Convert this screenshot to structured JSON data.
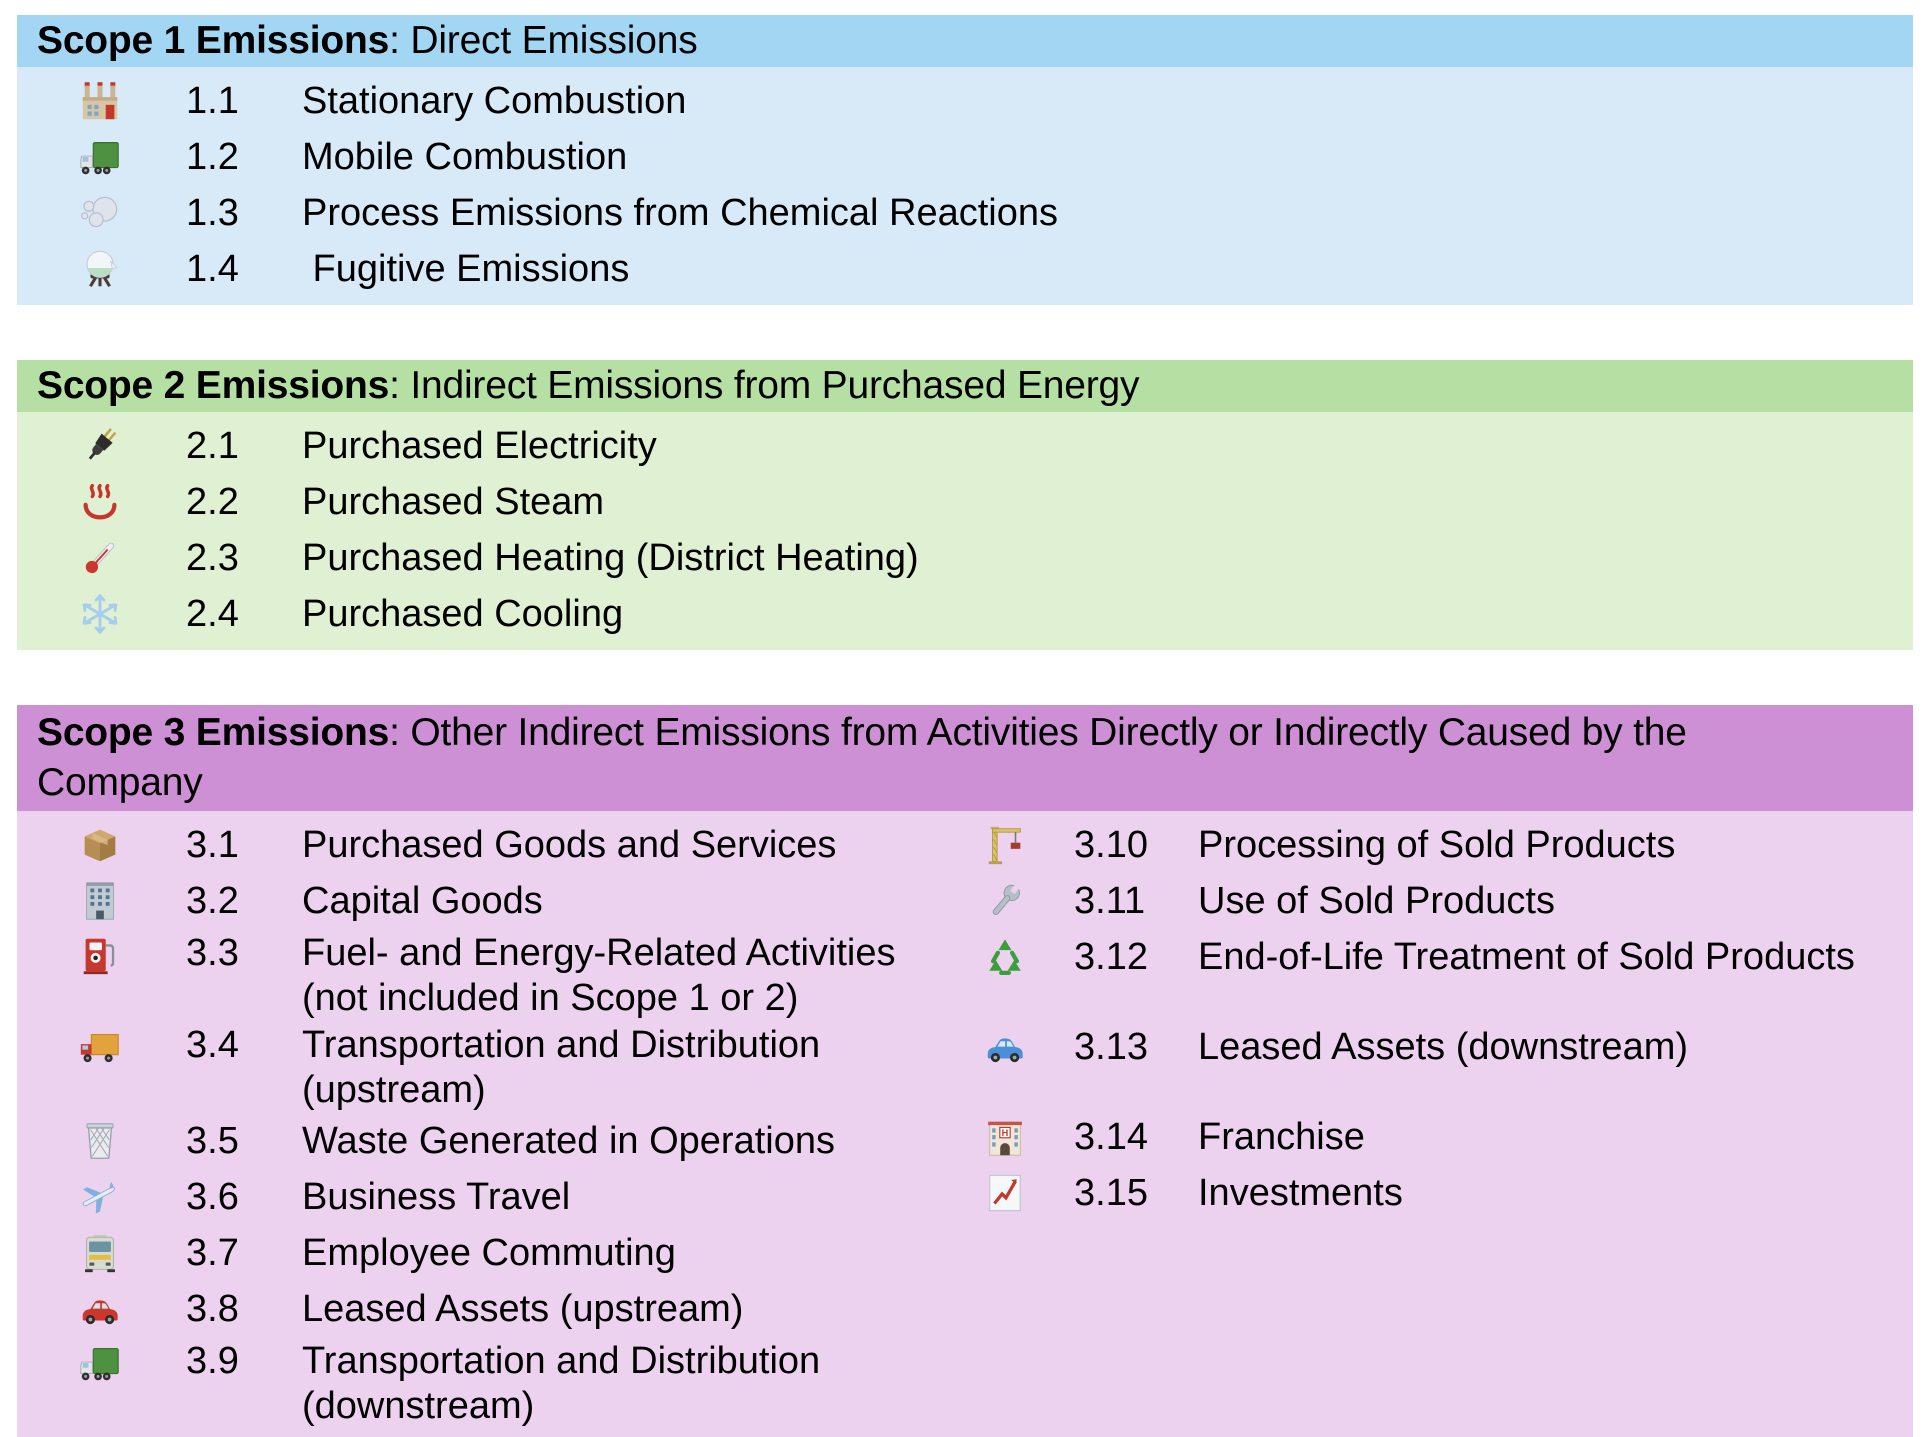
{
  "page": {
    "background": "#ffffff",
    "text_color": "#000000"
  },
  "scope1": {
    "title_bold": "Scope 1 Emissions",
    "title_rest": ": Direct Emissions",
    "header_color": "#a3d6f2",
    "body_color": "#d8eaf8",
    "items": [
      {
        "num": "1.1",
        "label": "Stationary Combustion",
        "icon": "factory"
      },
      {
        "num": "1.2",
        "label": "Mobile Combustion",
        "icon": "articulated-lorry"
      },
      {
        "num": "1.3",
        "label": "Process Emissions from Chemical Reactions",
        "icon": "dash-smoke"
      },
      {
        "num": "1.4",
        "label": " Fugitive Emissions",
        "icon": "alembic"
      }
    ]
  },
  "scope2": {
    "title_bold": "Scope 2 Emissions",
    "title_rest": ": Indirect Emissions from Purchased Energy",
    "header_color": "#b6e0a3",
    "body_color": "#dff0d3",
    "items": [
      {
        "num": "2.1",
        "label": "Purchased Electricity",
        "icon": "electric-plug"
      },
      {
        "num": "2.2",
        "label": "Purchased Steam",
        "icon": "hot-springs"
      },
      {
        "num": "2.3",
        "label": "Purchased Heating (District Heating)",
        "icon": "thermometer"
      },
      {
        "num": "2.4",
        "label": "Purchased Cooling",
        "icon": "snowflake"
      }
    ]
  },
  "scope3": {
    "title_bold": "Scope 3 Emissions",
    "title_rest": ": Other Indirect Emissions from Activities Directly or Indirectly Caused by the",
    "title_line2": "Company",
    "header_color": "#ce90d4",
    "body_color": "#edd2ef",
    "left_items": [
      {
        "num": "3.1",
        "label": "Purchased Goods and Services",
        "icon": "package-box"
      },
      {
        "num": "3.2",
        "label": "Capital Goods",
        "icon": "office-building"
      },
      {
        "num": "3.3",
        "label": "Fuel- and Energy-Related Activities",
        "label2": "(not included in Scope 1 or 2)",
        "icon": "fuel-pump"
      },
      {
        "num": "3.4",
        "label": "Transportation and Distribution",
        "label2": "(upstream)",
        "icon": "delivery-truck"
      },
      {
        "num": "3.5",
        "label": "Waste Generated in Operations",
        "icon": "wastebasket"
      },
      {
        "num": "3.6",
        "label": "Business Travel",
        "icon": "airplane"
      },
      {
        "num": "3.7",
        "label": "Employee Commuting",
        "icon": "bus"
      },
      {
        "num": "3.8",
        "label": "Leased Assets (upstream)",
        "icon": "red-car"
      },
      {
        "num": "3.9",
        "label": "Transportation and Distribution",
        "label2": "(downstream)",
        "icon": "articulated-lorry"
      }
    ],
    "right_items": [
      {
        "num": "3.10",
        "label": "Processing of Sold Products",
        "icon": "construction-crane"
      },
      {
        "num": "3.11",
        "label": "Use of Sold Products",
        "icon": "wrench"
      },
      {
        "num": "3.12",
        "label": "End-of-Life Treatment of Sold Products",
        "icon": "recycling"
      },
      {
        "num": "3.13",
        "label": "Leased Assets (downstream)",
        "icon": "blue-car"
      },
      {
        "num": "3.14",
        "label": "Franchise",
        "icon": "hotel"
      },
      {
        "num": "3.15",
        "label": "Investments",
        "icon": "chart-increasing"
      }
    ]
  }
}
